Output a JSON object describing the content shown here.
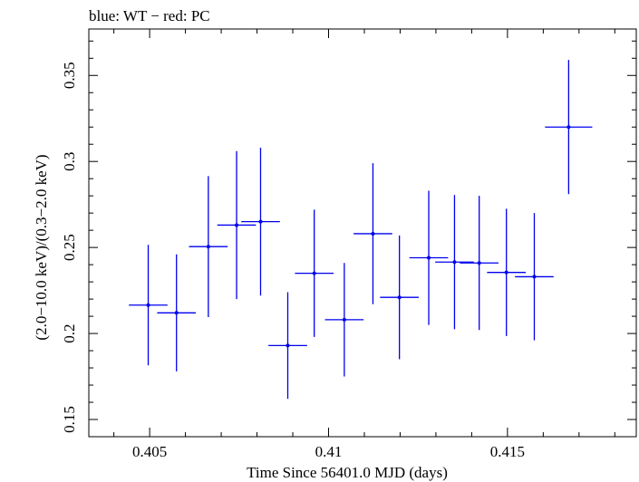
{
  "chart_data": {
    "type": "scatter",
    "title": "blue: WT − red: PC",
    "xlabel": "Time Since 56401.0 MJD (days)",
    "ylabel": "(2.0−10.0 keV)/(0.3−2.0 keV)",
    "xlim": [
      0.4033,
      0.4186
    ],
    "ylim": [
      0.14,
      0.377
    ],
    "x_ticks": [
      {
        "value": 0.405,
        "label": "0.405"
      },
      {
        "value": 0.41,
        "label": "0.41"
      },
      {
        "value": 0.415,
        "label": "0.415"
      }
    ],
    "y_ticks": [
      {
        "value": 0.15,
        "label": "0.15"
      },
      {
        "value": 0.2,
        "label": "0.2"
      },
      {
        "value": 0.25,
        "label": "0.25"
      },
      {
        "value": 0.3,
        "label": "0.3"
      },
      {
        "value": 0.35,
        "label": "0.35"
      }
    ],
    "series": [
      {
        "color": "#0000ee",
        "points": [
          {
            "x": 0.40496,
            "xerr": 0.00054,
            "y": 0.2165,
            "yerr": 0.035
          },
          {
            "x": 0.40575,
            "xerr": 0.00054,
            "y": 0.212,
            "yerr": 0.034
          },
          {
            "x": 0.40664,
            "xerr": 0.00054,
            "y": 0.2505,
            "yerr": 0.041
          },
          {
            "x": 0.40743,
            "xerr": 0.00054,
            "y": 0.263,
            "yerr": 0.043
          },
          {
            "x": 0.4081,
            "xerr": 0.00054,
            "y": 0.265,
            "yerr": 0.043
          },
          {
            "x": 0.40886,
            "xerr": 0.00054,
            "y": 0.193,
            "yerr": 0.031
          },
          {
            "x": 0.4096,
            "xerr": 0.00054,
            "y": 0.235,
            "yerr": 0.037
          },
          {
            "x": 0.41044,
            "xerr": 0.00054,
            "y": 0.208,
            "yerr": 0.033
          },
          {
            "x": 0.41124,
            "xerr": 0.00054,
            "y": 0.258,
            "yerr": 0.041
          },
          {
            "x": 0.41198,
            "xerr": 0.00054,
            "y": 0.221,
            "yerr": 0.036
          },
          {
            "x": 0.4128,
            "xerr": 0.00054,
            "y": 0.244,
            "yerr": 0.039
          },
          {
            "x": 0.41352,
            "xerr": 0.00054,
            "y": 0.2415,
            "yerr": 0.039
          },
          {
            "x": 0.41421,
            "xerr": 0.00054,
            "y": 0.241,
            "yerr": 0.039
          },
          {
            "x": 0.41497,
            "xerr": 0.00054,
            "y": 0.2355,
            "yerr": 0.037
          },
          {
            "x": 0.41575,
            "xerr": 0.00054,
            "y": 0.233,
            "yerr": 0.037
          },
          {
            "x": 0.41671,
            "xerr": 0.00066,
            "y": 0.32,
            "yerr": 0.039
          }
        ]
      }
    ]
  }
}
